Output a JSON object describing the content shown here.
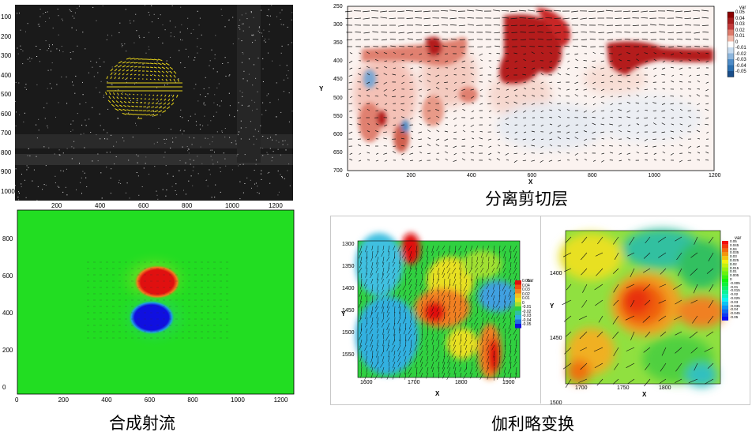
{
  "colors": {
    "piv_background": "#1a1a1a",
    "piv_vectors": "#e6d21a",
    "jet_background": "#22dd22",
    "jet_positive": "#e01010",
    "jet_negative": "#1010e0",
    "shear_positive": "#b41e1e",
    "shear_negative": "#2e6fb0"
  },
  "piv_image": {
    "y_ticks": [
      "100",
      "200",
      "300",
      "400",
      "500",
      "600",
      "700",
      "800",
      "900",
      "1000"
    ],
    "x_ticks": [
      "200",
      "400",
      "600",
      "800",
      "1000",
      "1200"
    ]
  },
  "synthetic_jet": {
    "caption": "合成射流",
    "y_ticks": [
      "800",
      "600",
      "400",
      "200",
      "0"
    ],
    "x_ticks": [
      "0",
      "200",
      "400",
      "600",
      "800",
      "1000",
      "1200"
    ]
  },
  "shear_layer": {
    "caption": "分离剪切层",
    "y_axis_label": "Y",
    "x_axis_label": "X",
    "y_ticks": [
      "250",
      "300",
      "350",
      "400",
      "450",
      "500",
      "550",
      "600",
      "650",
      "700"
    ],
    "x_ticks": [
      "0",
      "200",
      "400",
      "600",
      "800",
      "1000",
      "1200"
    ],
    "legend_title": "var",
    "legend_ticks": [
      "0.05",
      "0.04",
      "0.03",
      "0.02",
      "0.01",
      "0",
      "-0.01",
      "-0.02",
      "-0.03",
      "-0.04",
      "-0.05"
    ]
  },
  "galilean": {
    "caption": "伽利略变换",
    "left": {
      "y_axis_label": "Y",
      "x_axis_label": "X",
      "y_ticks": [
        "1300",
        "1350",
        "1400",
        "1450",
        "1500",
        "1550"
      ],
      "x_ticks": [
        "1600",
        "1700",
        "1800",
        "1900"
      ],
      "legend_title": "var",
      "legend_ticks": [
        "0.05",
        "0.04",
        "0.03",
        "0.02",
        "0.01",
        "0",
        "-0.01",
        "-0.02",
        "-0.03",
        "-0.04",
        "-0.05"
      ]
    },
    "right": {
      "y_axis_label": "Y",
      "x_axis_label": "X",
      "y_ticks": [
        "1400",
        "1450",
        "1500"
      ],
      "x_ticks": [
        "1700",
        "1750",
        "1800"
      ],
      "legend_title": "var",
      "legend_ticks": [
        "0.05",
        "0.045",
        "0.04",
        "0.035",
        "0.03",
        "0.025",
        "0.02",
        "0.015",
        "0.01",
        "0.005",
        "0",
        "-0.005",
        "-0.01",
        "-0.015",
        "-0.02",
        "-0.025",
        "-0.03",
        "-0.035",
        "-0.04",
        "-0.045",
        "-0.05"
      ]
    }
  }
}
